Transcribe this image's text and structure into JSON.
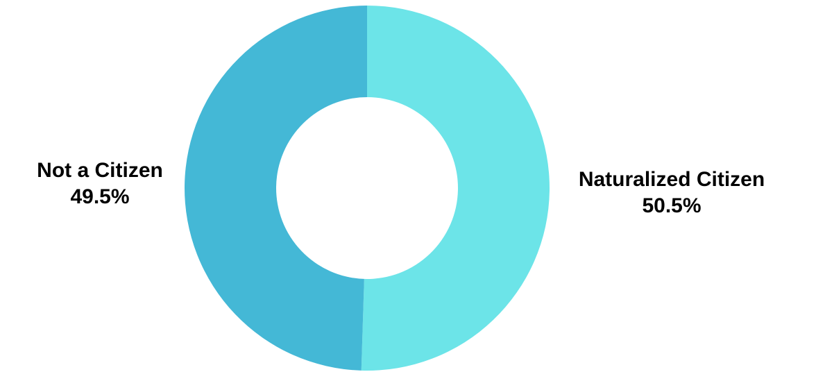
{
  "chart_data": {
    "type": "pie",
    "variant": "donut",
    "title": "",
    "slices": [
      {
        "label": "Naturalized Citizen",
        "value": 50.5,
        "value_label": "50.5%",
        "color": "#6ce4e8"
      },
      {
        "label": "Not a Citizen",
        "value": 49.5,
        "value_label": "49.5%",
        "color": "#44b8d6"
      }
    ],
    "legend": "none",
    "start_angle": "top",
    "direction": "clockwise"
  }
}
